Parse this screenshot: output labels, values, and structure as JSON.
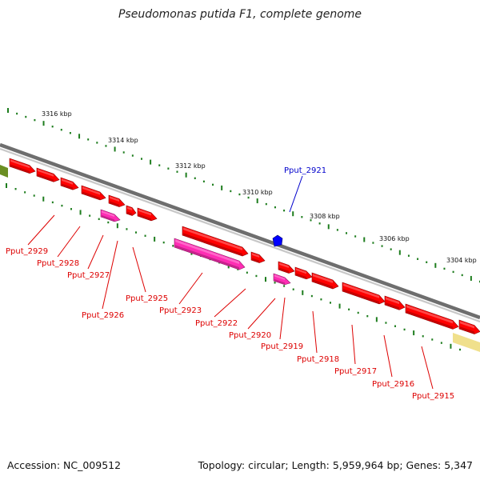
{
  "title": "Pseudomonas putida F1, complete genome",
  "footer": {
    "accession": "Accession: NC_009512",
    "summary": "Topology: circular; Length: 5,959,964 bp; Genes: 5,347"
  },
  "colors": {
    "forward_gene": "#ff0000",
    "reverse_gene": "#ff0000",
    "rna_gene": "#ff2db4",
    "selected_gene": "#0000ff",
    "tick": "#1e7d1e",
    "backbone": "#888888",
    "highlight_green": "#6b8e23",
    "highlight_yellow": "#f0e08c",
    "label_red": "#dd0000",
    "label_blue": "#0000cc"
  },
  "scale_ticks": [
    {
      "label": "3316 kbp"
    },
    {
      "label": "3314 kbp"
    },
    {
      "label": "3312 kbp"
    },
    {
      "label": "3310 kbp"
    },
    {
      "label": "3308 kbp"
    },
    {
      "label": "3306 kbp"
    },
    {
      "label": "3304 kbp"
    }
  ],
  "gene_labels": [
    {
      "name": "Pput_2929",
      "color": "label_red"
    },
    {
      "name": "Pput_2928",
      "color": "label_red"
    },
    {
      "name": "Pput_2927",
      "color": "label_red"
    },
    {
      "name": "Pput_2926",
      "color": "label_red"
    },
    {
      "name": "Pput_2925",
      "color": "label_red"
    },
    {
      "name": "Pput_2923",
      "color": "label_red"
    },
    {
      "name": "Pput_2922",
      "color": "label_red"
    },
    {
      "name": "Pput_2920",
      "color": "label_red"
    },
    {
      "name": "Pput_2919",
      "color": "label_red"
    },
    {
      "name": "Pput_2918",
      "color": "label_red"
    },
    {
      "name": "Pput_2917",
      "color": "label_red"
    },
    {
      "name": "Pput_2916",
      "color": "label_red"
    },
    {
      "name": "Pput_2915",
      "color": "label_red"
    },
    {
      "name": "Pput_2921",
      "color": "label_blue"
    }
  ]
}
